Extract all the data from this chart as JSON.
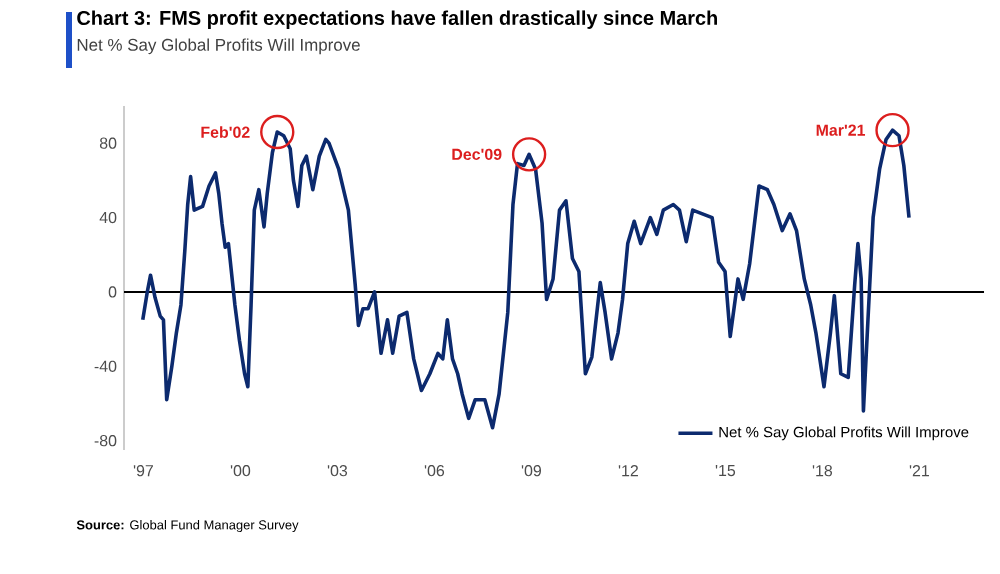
{
  "chart_data": {
    "type": "line",
    "title": "Chart 3: FMS profit expectations have fallen drastically since March",
    "subtitle": "Net % Say Global Profits Will Improve",
    "x": [
      1996.98,
      1997.12,
      1997.22,
      1997.36,
      1997.52,
      1997.62,
      1997.72,
      1997.88,
      1998.02,
      1998.16,
      1998.28,
      1998.37,
      1998.46,
      1998.57,
      1998.83,
      1999.03,
      1999.23,
      1999.33,
      1999.43,
      1999.53,
      1999.63,
      1999.83,
      1999.97,
      2000.13,
      2000.23,
      2000.33,
      2000.43,
      2000.57,
      2000.73,
      2000.83,
      2000.99,
      2001.14,
      2001.34,
      2001.54,
      2001.64,
      2001.78,
      2001.9,
      2002.04,
      2002.24,
      2002.44,
      2002.64,
      2002.74,
      2003.04,
      2003.34,
      2003.55,
      2003.65,
      2003.79,
      2003.95,
      2004.15,
      2004.35,
      2004.55,
      2004.71,
      2004.91,
      2005.15,
      2005.36,
      2005.6,
      2005.86,
      2006.11,
      2006.26,
      2006.4,
      2006.56,
      2006.72,
      2006.86,
      2007.06,
      2007.26,
      2007.56,
      2007.8,
      2008.0,
      2008.27,
      2008.43,
      2008.57,
      2008.77,
      2008.93,
      2009.13,
      2009.33,
      2009.47,
      2009.67,
      2009.87,
      2010.07,
      2010.27,
      2010.47,
      2010.67,
      2010.87,
      2011.13,
      2011.28,
      2011.48,
      2011.68,
      2011.82,
      2011.98,
      2012.18,
      2012.38,
      2012.68,
      2012.88,
      2013.08,
      2013.39,
      2013.58,
      2013.79,
      2013.99,
      2014.29,
      2014.59,
      2014.79,
      2014.99,
      2015.15,
      2015.39,
      2015.55,
      2015.75,
      2016.04,
      2016.3,
      2016.5,
      2016.76,
      2017.0,
      2017.2,
      2017.44,
      2017.64,
      2017.8,
      2018.05,
      2018.25,
      2018.37,
      2018.57,
      2018.8,
      2019.0,
      2019.1,
      2019.2,
      2019.27,
      2019.41,
      2019.57,
      2019.77,
      2019.97,
      2020.17,
      2020.37,
      2020.52,
      2020.68
    ],
    "series": [
      {
        "name": "Net % Say Global Profits Will Improve",
        "color": "#0c2a6e",
        "values": [
          -15,
          0,
          9,
          -3,
          -13,
          -15,
          -58,
          -40,
          -22,
          -7,
          22,
          47,
          62,
          44,
          46,
          57,
          64,
          53,
          37,
          24,
          26,
          -7,
          -26,
          -44,
          -51,
          -7,
          44,
          55,
          35,
          53,
          75,
          86,
          84,
          77,
          60,
          46,
          68,
          73,
          55,
          73,
          82,
          80,
          66,
          44,
          4,
          -18,
          -9,
          -9,
          0,
          -33,
          -15,
          -33,
          -13,
          -11,
          -36,
          -53,
          -44,
          -33,
          -36,
          -15,
          -36,
          -44,
          -55,
          -68,
          -58,
          -58,
          -73,
          -55,
          -11,
          47,
          69,
          68,
          74,
          66,
          37,
          -4,
          7,
          44,
          49,
          18,
          11,
          -44,
          -35,
          5,
          -11,
          -36,
          -22,
          -4,
          26,
          38,
          26,
          40,
          31,
          44,
          47,
          44,
          27,
          44,
          42,
          40,
          16,
          11,
          -24,
          7,
          -4,
          15,
          57,
          55,
          47,
          33,
          42,
          33,
          7,
          -7,
          -22,
          -51,
          -22,
          -2,
          -44,
          -46,
          4,
          26,
          7,
          -64,
          -15,
          40,
          66,
          82,
          87,
          84,
          68,
          40
        ]
      }
    ],
    "xlim": [
      1996.4,
      2023
    ],
    "xticks": [
      {
        "value": 1997,
        "label": "'97"
      },
      {
        "value": 2000,
        "label": "'00"
      },
      {
        "value": 2003,
        "label": "'03"
      },
      {
        "value": 2006,
        "label": "'06"
      },
      {
        "value": 2009,
        "label": "'09"
      },
      {
        "value": 2012,
        "label": "'12"
      },
      {
        "value": 2015,
        "label": "'15"
      },
      {
        "value": 2018,
        "label": "'18"
      },
      {
        "value": 2021,
        "label": "'21"
      }
    ],
    "ylim": [
      -85,
      100
    ],
    "yticks": [
      -80,
      -40,
      0,
      40,
      80
    ],
    "ref_lines": [
      {
        "axis": "y",
        "value": 0,
        "color": "#000000"
      }
    ],
    "legend": "bottom right",
    "grid": false,
    "annotations": [
      {
        "text": "Feb'02",
        "x": 2001.14,
        "y": 86
      },
      {
        "text": "Dec'09",
        "x": 2008.93,
        "y": 74
      },
      {
        "text": "Mar'21",
        "x": 2020.17,
        "y": 87
      },
      "**Source:** Global Fund Manager Survey"
    ]
  }
}
